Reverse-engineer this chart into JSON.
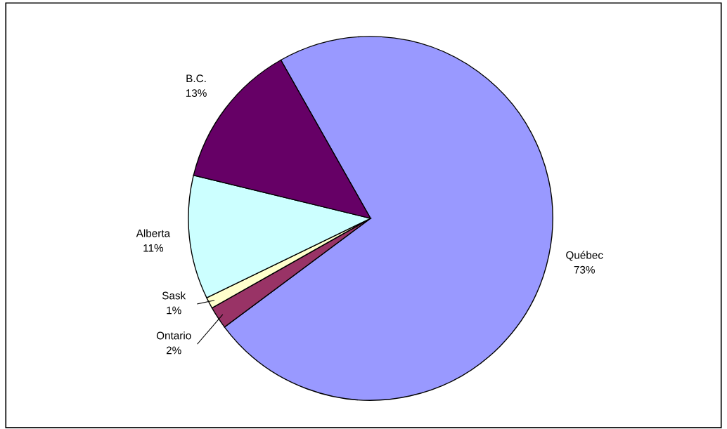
{
  "chart_data": {
    "type": "pie",
    "categories": [
      "Québec",
      "Ontario",
      "Sask",
      "Alberta",
      "B.C."
    ],
    "values": [
      73,
      2,
      1,
      11,
      13
    ],
    "colors": [
      "#9999ff",
      "#993366",
      "#ffffcc",
      "#ccffff",
      "#660066"
    ],
    "value_labels": [
      "73%",
      "2%",
      "1%",
      "11%",
      "13%"
    ]
  }
}
